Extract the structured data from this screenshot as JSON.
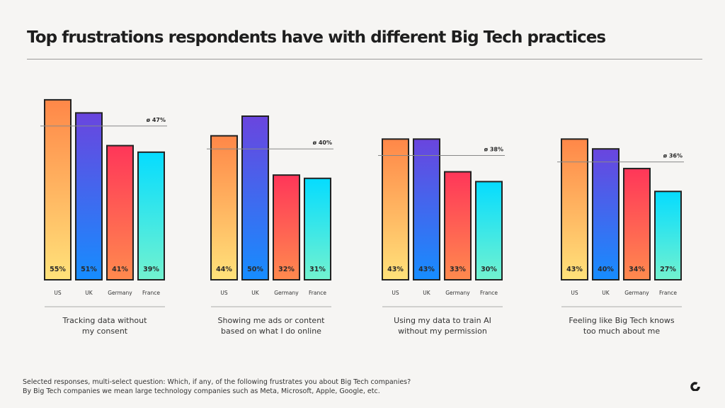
{
  "title": "Top frustrations respondents have with different Big Tech practices",
  "footnote": {
    "line1": "Selected responses, multi-select question: Which, if any, of the following frustrates you about Big Tech companies?",
    "line2": "By Big Tech companies we mean large technology companies such as Meta, Microsoft, Apple, Google, etc."
  },
  "colors": {
    "US": [
      "#ff8748",
      "#ffe27a"
    ],
    "UK": [
      "#6a45de",
      "#168dff"
    ],
    "Germany": [
      "#ff3659",
      "#ff8a4e"
    ],
    "France": [
      "#05dcff",
      "#72f2cf"
    ]
  },
  "chart_data": [
    {
      "type": "bar",
      "title": "Tracking data without my consent",
      "caption_lines": [
        "Tracking data without",
        "my consent"
      ],
      "categories": [
        "US",
        "UK",
        "Germany",
        "France"
      ],
      "values": [
        55,
        51,
        41,
        39
      ],
      "average": 47,
      "average_label": "ø 47%",
      "ylim": [
        0,
        60
      ]
    },
    {
      "type": "bar",
      "title": "Showing me ads or content based on what I do online",
      "caption_lines": [
        "Showing me ads or content",
        "based on what I do online"
      ],
      "categories": [
        "US",
        "UK",
        "Germany",
        "France"
      ],
      "values": [
        44,
        50,
        32,
        31
      ],
      "average": 40,
      "average_label": "ø 40%",
      "ylim": [
        0,
        60
      ]
    },
    {
      "type": "bar",
      "title": "Using my data to train AI without my permission",
      "caption_lines": [
        "Using my data to train AI",
        "without my permission"
      ],
      "categories": [
        "US",
        "UK",
        "Germany",
        "France"
      ],
      "values": [
        43,
        43,
        33,
        30
      ],
      "average": 38,
      "average_label": "ø 38%",
      "ylim": [
        0,
        60
      ]
    },
    {
      "type": "bar",
      "title": "Feeling like Big Tech knows too much about me",
      "caption_lines": [
        "Feeling like Big Tech knows",
        "too much about me"
      ],
      "categories": [
        "US",
        "UK",
        "Germany",
        "France"
      ],
      "values": [
        43,
        40,
        34,
        27
      ],
      "average": 36,
      "average_label": "ø 36%",
      "ylim": [
        0,
        60
      ]
    }
  ]
}
